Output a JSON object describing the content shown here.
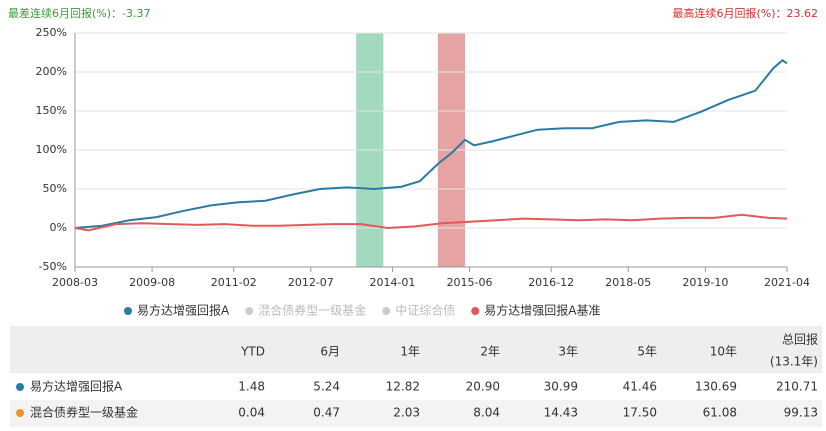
{
  "chart_data": {
    "type": "line",
    "note_left": "最差连续6月回报(%)：-3.37",
    "note_right": "最高连续6月回报(%)：23.62",
    "xlim": [
      "2008-03",
      "2021-04"
    ],
    "xticks": [
      "2008-03",
      "2009-08",
      "2011-02",
      "2012-07",
      "2014-01",
      "2015-06",
      "2016-12",
      "2018-05",
      "2019-10",
      "2021-04"
    ],
    "ylim": [
      -50,
      250
    ],
    "yticks": [
      {
        "value": -50,
        "label": "-50%"
      },
      {
        "value": 0,
        "label": "0%"
      },
      {
        "value": 50,
        "label": "50%"
      },
      {
        "value": 100,
        "label": "100%"
      },
      {
        "value": 150,
        "label": "150%"
      },
      {
        "value": 200,
        "label": "200%"
      },
      {
        "value": 250,
        "label": "250%"
      }
    ],
    "grid": true,
    "bands": [
      {
        "start": "2013-05",
        "end": "2013-11",
        "color": "#a3d9bf"
      },
      {
        "start": "2014-11",
        "end": "2015-05",
        "color": "#e6a3a3"
      }
    ],
    "series": [
      {
        "name": "易方达增强回报A",
        "color": "#2a7ba3",
        "x": [
          "2008-03",
          "2008-09",
          "2009-03",
          "2009-09",
          "2010-03",
          "2010-09",
          "2011-03",
          "2011-09",
          "2012-03",
          "2012-09",
          "2013-03",
          "2013-09",
          "2014-03",
          "2014-07",
          "2014-11",
          "2015-02",
          "2015-05",
          "2015-07",
          "2015-11",
          "2016-03",
          "2016-09",
          "2017-03",
          "2017-09",
          "2018-03",
          "2018-09",
          "2019-03",
          "2019-09",
          "2020-03",
          "2020-09",
          "2021-01",
          "2021-03",
          "2021-04"
        ],
        "values": [
          0,
          3,
          10,
          14,
          22,
          29,
          33,
          35,
          43,
          50,
          52,
          50,
          53,
          60,
          82,
          96,
          113,
          106,
          111,
          117,
          126,
          128,
          128,
          136,
          138,
          136,
          149,
          164,
          176,
          205,
          215,
          211
        ]
      },
      {
        "name": "混合债券型一级基金",
        "color": "#cccccc",
        "hidden": true,
        "x": [],
        "values": []
      },
      {
        "name": "中证综合债",
        "color": "#cccccc",
        "hidden": true,
        "x": [],
        "values": []
      },
      {
        "name": "易方达增强回报A基准",
        "color": "#e05a5a",
        "x": [
          "2008-03",
          "2008-06",
          "2008-12",
          "2009-06",
          "2009-12",
          "2010-06",
          "2010-12",
          "2011-06",
          "2011-12",
          "2012-06",
          "2012-12",
          "2013-06",
          "2013-12",
          "2014-06",
          "2014-12",
          "2015-06",
          "2015-12",
          "2016-06",
          "2016-12",
          "2017-06",
          "2017-12",
          "2018-06",
          "2018-12",
          "2019-06",
          "2019-12",
          "2020-06",
          "2020-12",
          "2021-04"
        ],
        "values": [
          0,
          -3,
          5,
          6,
          5,
          4,
          5,
          3,
          3,
          4,
          5,
          5,
          0,
          2,
          6,
          8,
          10,
          12,
          11,
          10,
          11,
          10,
          12,
          13,
          13,
          17,
          13,
          12
        ]
      }
    ]
  },
  "table": {
    "columns": [
      "YTD",
      "6月",
      "1年",
      "2年",
      "3年",
      "5年",
      "10年"
    ],
    "total_header": [
      "总回报",
      "(13.1年)"
    ],
    "rows": [
      {
        "name": "易方达增强回报A",
        "color": "#2a7ba3",
        "values": [
          "1.48",
          "5.24",
          "12.82",
          "20.90",
          "30.99",
          "41.46",
          "130.69",
          "210.71"
        ]
      },
      {
        "name": "混合债券型一级基金",
        "color": "#f0922b",
        "values": [
          "0.04",
          "0.47",
          "2.03",
          "8.04",
          "14.43",
          "17.50",
          "61.08",
          "99.13"
        ]
      }
    ]
  }
}
